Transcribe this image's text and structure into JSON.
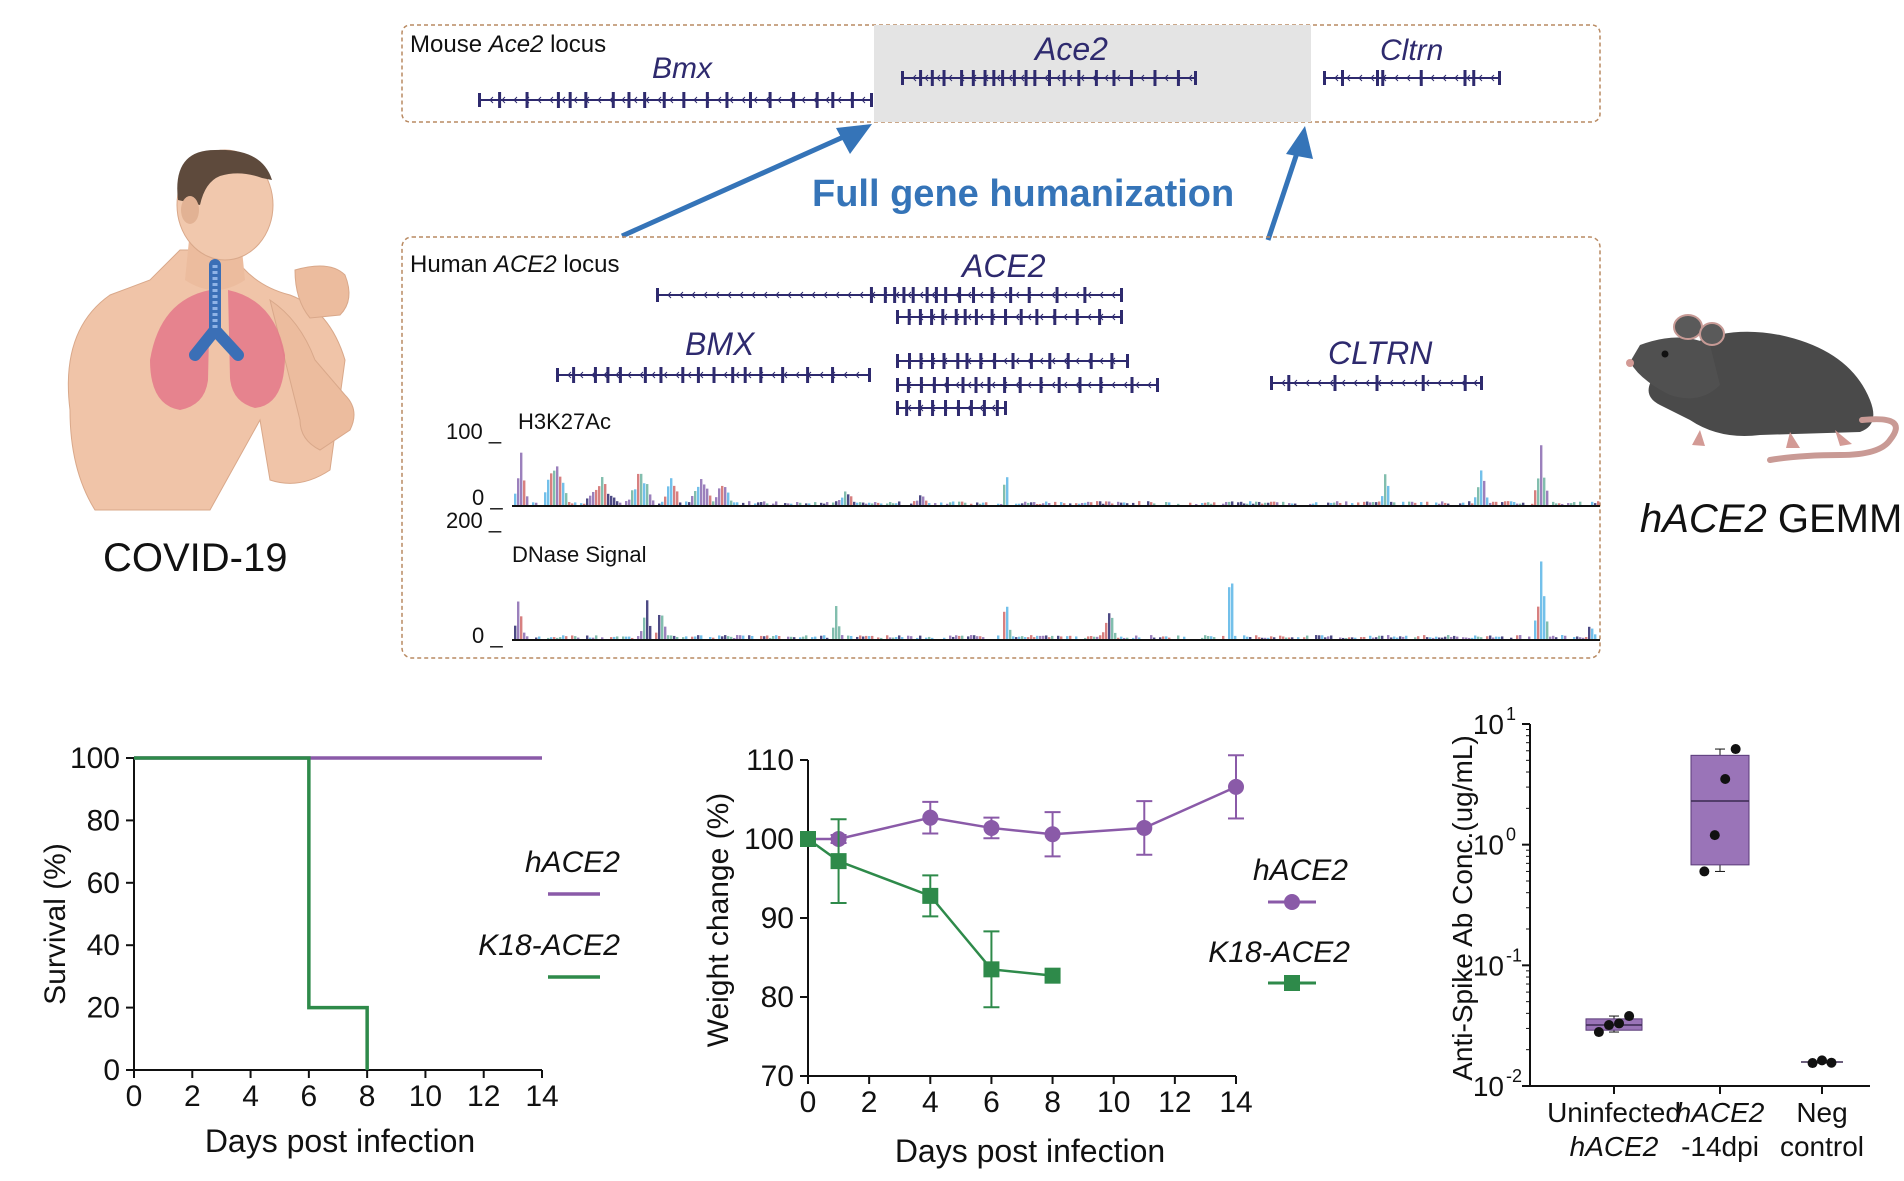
{
  "figure": {
    "left_label": "COVID-19",
    "mouse_label_italic": "hACE2",
    "mouse_label_rest": " GEMM",
    "arrow_label": "Full gene humanization",
    "mouse_locus": {
      "title_prefix": "Mouse ",
      "title_italic": "Ace2",
      "title_suffix": " locus",
      "genes": [
        "Bmx",
        "Ace2",
        "Cltrn"
      ]
    },
    "human_locus": {
      "title_prefix": "Human ",
      "title_italic": "ACE2",
      "title_suffix": " locus",
      "genes": [
        "ACE2",
        "BMX",
        "CLTRN"
      ],
      "track1_label": "H3K27Ac",
      "track1_max": "100 _",
      "track1_min": "0 _",
      "track2_label": "DNase Signal",
      "track2_max": "200 _",
      "track2_min": "0 _"
    },
    "colors": {
      "gene": "#2e2a6e",
      "arrow": "#3574b8",
      "box_border": "#b98a62",
      "highlight": "#e4e4e4",
      "hace2": "#8a5aa8",
      "k18": "#2e8a4a"
    }
  },
  "chart_data": [
    {
      "type": "line",
      "title": "",
      "xlabel": "Days post infection",
      "ylabel": "Survival (%)",
      "xlim": [
        0,
        14
      ],
      "ylim": [
        0,
        100
      ],
      "xticks": [
        "0",
        "2",
        "4",
        "6",
        "8",
        "10",
        "12",
        "14"
      ],
      "yticks": [
        "0",
        "20",
        "40",
        "60",
        "80",
        "100"
      ],
      "step": true,
      "series": [
        {
          "name": "hACE2",
          "color": "#8a5aa8",
          "x": [
            0,
            14
          ],
          "y": [
            100,
            100
          ]
        },
        {
          "name": "K18-ACE2",
          "color": "#2e8a4a",
          "x": [
            0,
            6,
            6,
            8,
            8
          ],
          "y": [
            100,
            100,
            20,
            20,
            0
          ]
        }
      ],
      "legend": "right"
    },
    {
      "type": "line",
      "title": "",
      "xlabel": "Days post infection",
      "ylabel": "Weight change (%)",
      "xlim": [
        0,
        14
      ],
      "ylim": [
        70,
        110
      ],
      "xticks": [
        "0",
        "2",
        "4",
        "6",
        "8",
        "10",
        "12",
        "14"
      ],
      "yticks": [
        "70",
        "80",
        "90",
        "100",
        "110"
      ],
      "series": [
        {
          "name": "hACE2",
          "color": "#8a5aa8",
          "marker": "circle",
          "x": [
            0,
            1,
            4,
            6,
            8,
            11,
            14
          ],
          "y": [
            100,
            100,
            102.7,
            101.4,
            100.6,
            101.4,
            106.6
          ],
          "err": [
            0,
            0.5,
            2,
            1.3,
            2.8,
            3.4,
            4
          ]
        },
        {
          "name": "K18-ACE2",
          "color": "#2e8a4a",
          "marker": "square",
          "x": [
            0,
            1,
            4,
            6,
            8
          ],
          "y": [
            100,
            97.2,
            92.8,
            83.5,
            82.7
          ],
          "err": [
            0,
            5.3,
            2.6,
            4.8,
            0
          ]
        }
      ],
      "legend": "right"
    },
    {
      "type": "box",
      "title": "",
      "ylabel": "Anti-Spike Ab Conc.(ug/mL)",
      "yscale": "log",
      "ylim": [
        0.01,
        10
      ],
      "yticks": [
        "10^-2",
        "10^-1",
        "10^0",
        "10^1"
      ],
      "categories": [
        {
          "line1": "Uninfected",
          "line2": "hACE2",
          "line2_italic": true,
          "line1_italic": false
        },
        {
          "line1": "hACE2",
          "line2": "-14dpi",
          "line1_italic": true,
          "line2_italic": false
        },
        {
          "line1": "Neg",
          "line2": "control",
          "line1_italic": false,
          "line2_italic": false
        }
      ],
      "boxes": [
        {
          "q1": 0.029,
          "median": 0.032,
          "q3": 0.036,
          "min": 0.028,
          "max": 0.038,
          "points": [
            0.028,
            0.032,
            0.033,
            0.038
          ],
          "box": true
        },
        {
          "q1": 0.68,
          "median": 2.3,
          "q3": 5.5,
          "min": 0.6,
          "max": 6.2,
          "points": [
            0.6,
            1.2,
            3.5,
            6.2
          ],
          "box": true
        },
        {
          "median": 0.0158,
          "min": 0.0155,
          "max": 0.0163,
          "points": [
            0.0155,
            0.0163,
            0.0156
          ],
          "box": false
        }
      ]
    }
  ]
}
